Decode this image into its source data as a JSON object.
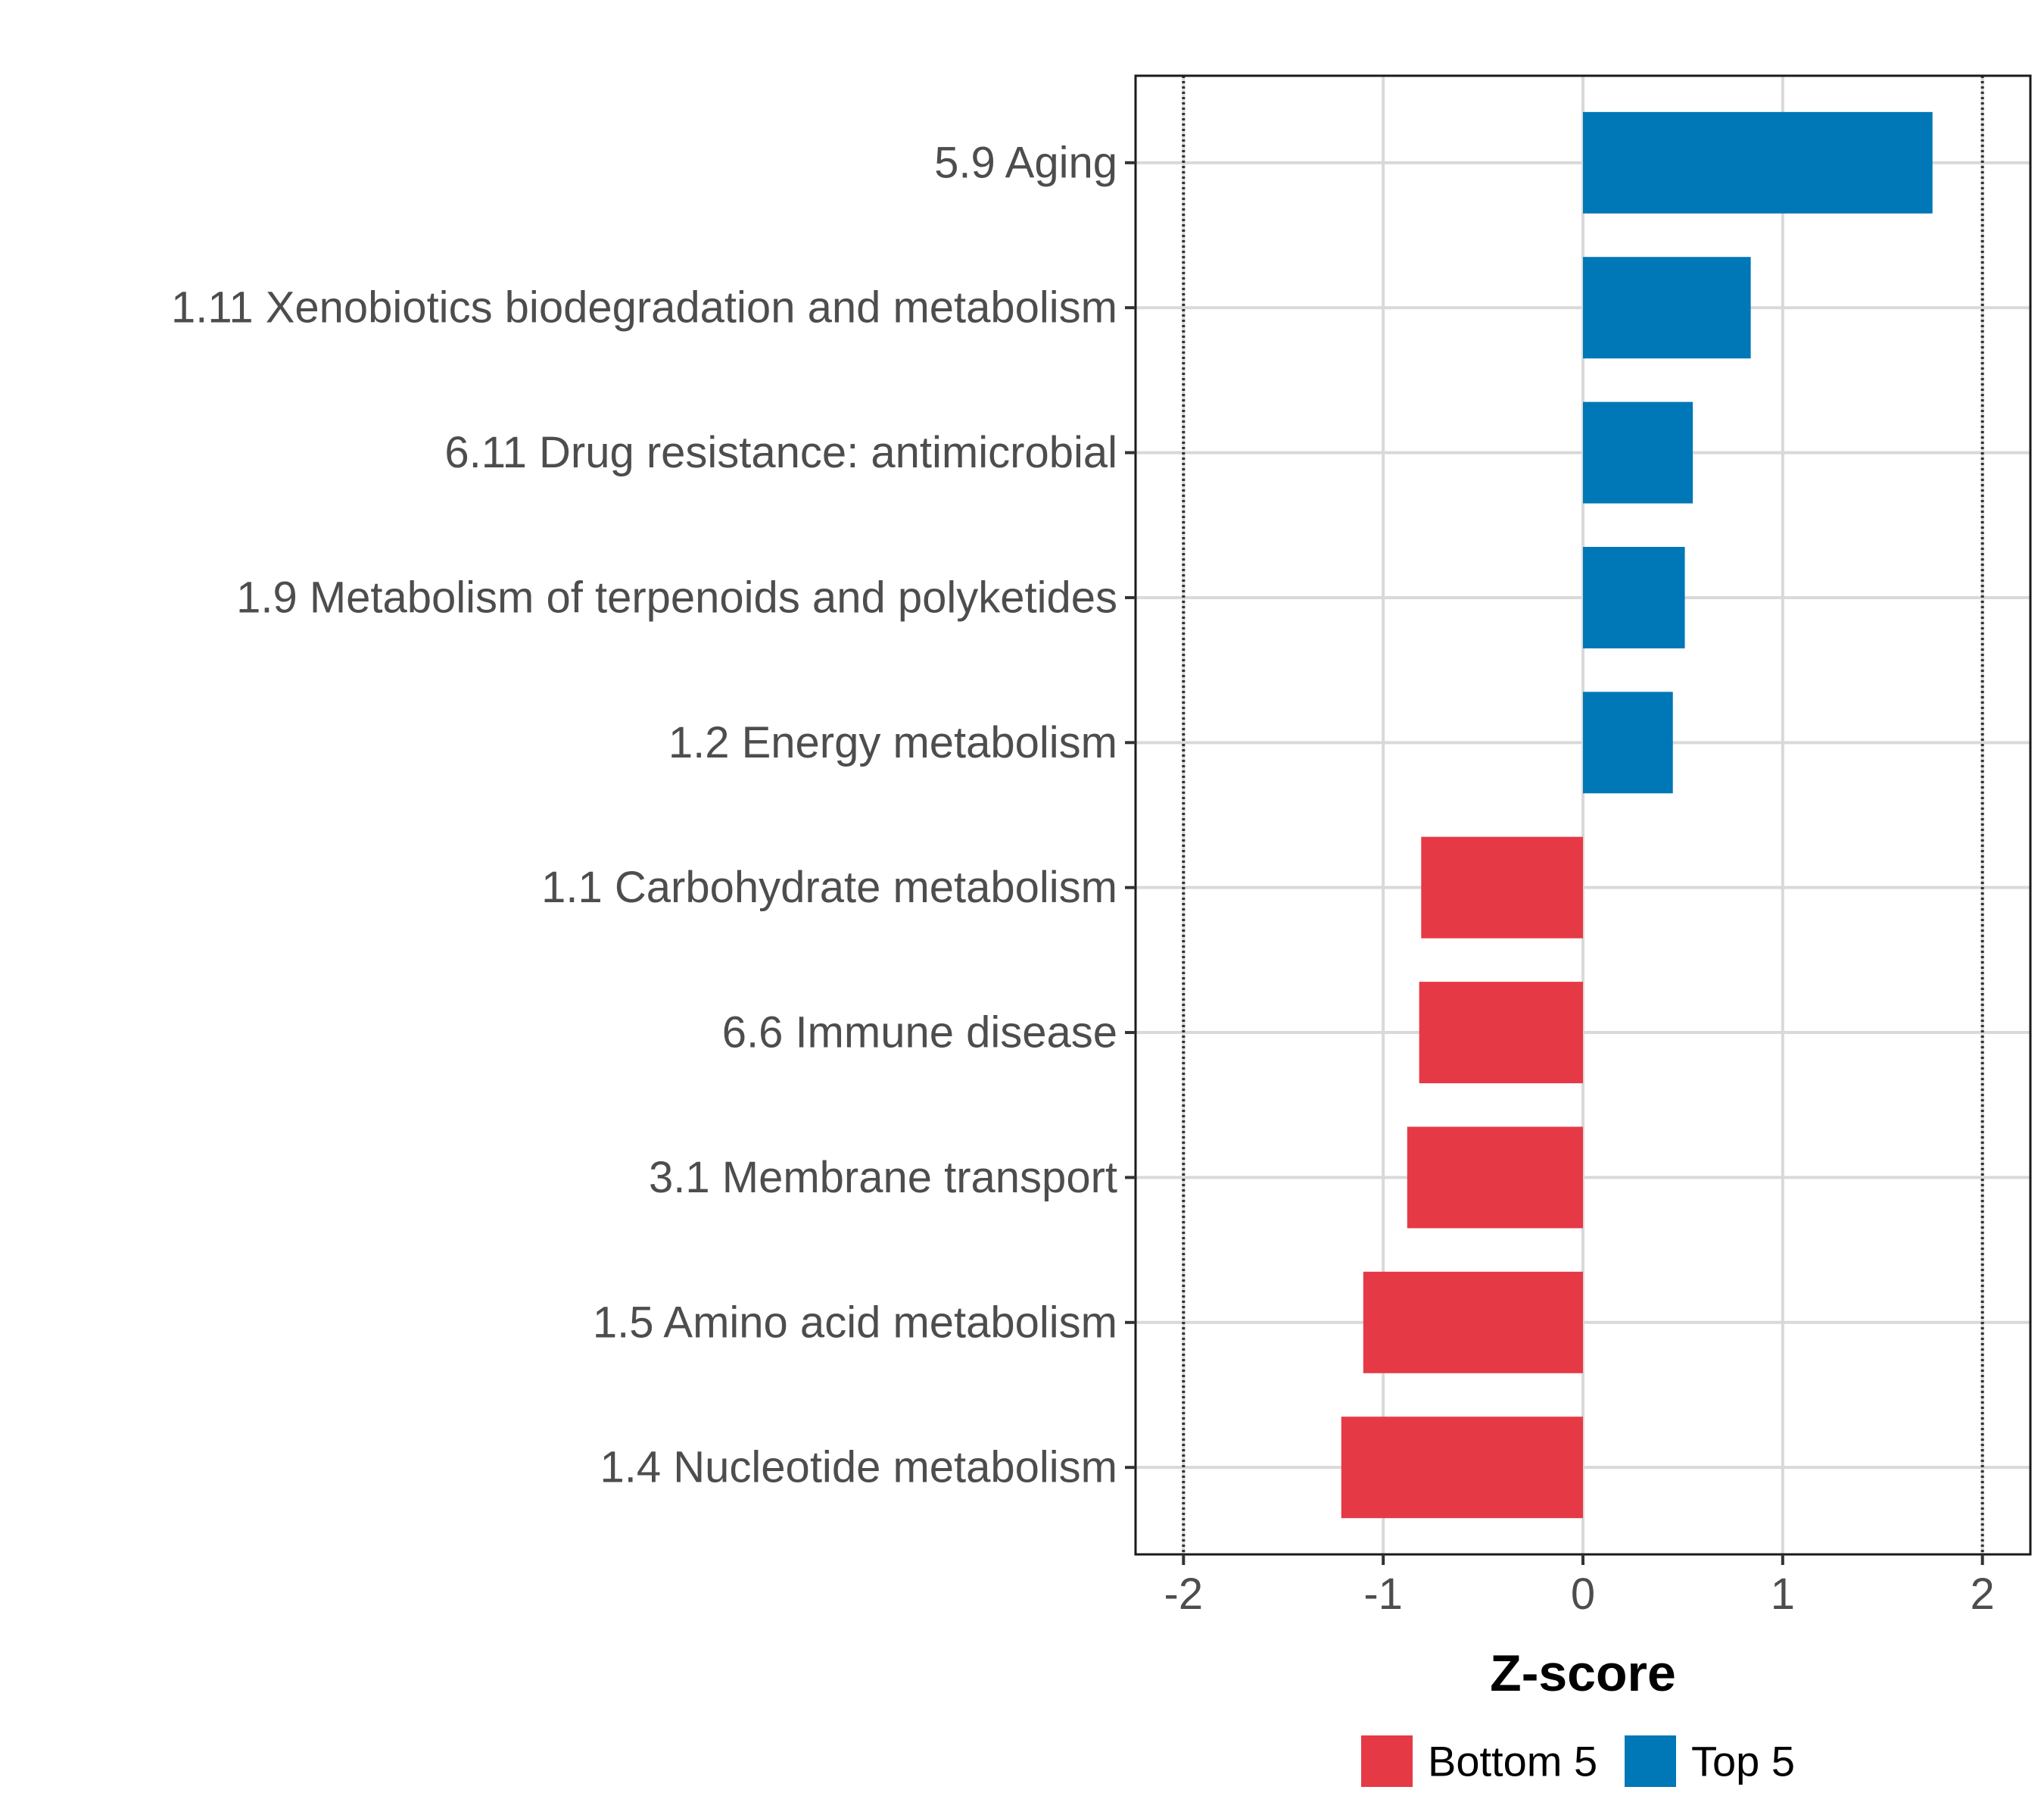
{
  "chart_data": {
    "type": "bar",
    "orientation": "horizontal",
    "title": "",
    "xlabel": "Z-score",
    "ylabel": "",
    "xlim": [
      -2.24,
      2.24
    ],
    "xticks": [
      -2,
      -1,
      0,
      1,
      2
    ],
    "xtick_labels": [
      "-2",
      "-1",
      "0",
      "1",
      "2"
    ],
    "reference_lines": [
      -2,
      2
    ],
    "grid": true,
    "legend_position": "bottom",
    "categories": [
      "5.9 Aging",
      "1.11 Xenobiotics biodegradation and metabolism",
      "6.11 Drug resistance: antimicrobial",
      "1.9 Metabolism of terpenoids and polyketides",
      "1.2 Energy metabolism",
      "1.1 Carbohydrate metabolism",
      "6.6 Immune disease",
      "3.1 Membrane transport",
      "1.5 Amino acid metabolism",
      "1.4 Nucleotide metabolism"
    ],
    "values": [
      1.75,
      0.84,
      0.55,
      0.51,
      0.45,
      -0.81,
      -0.82,
      -0.88,
      -1.1,
      -1.21
    ],
    "groups": [
      "Top 5",
      "Top 5",
      "Top 5",
      "Top 5",
      "Top 5",
      "Bottom 5",
      "Bottom 5",
      "Bottom 5",
      "Bottom 5",
      "Bottom 5"
    ],
    "legend": [
      {
        "name": "Bottom 5",
        "color": "#e63946"
      },
      {
        "name": "Top 5",
        "color": "#0077b6"
      }
    ]
  }
}
